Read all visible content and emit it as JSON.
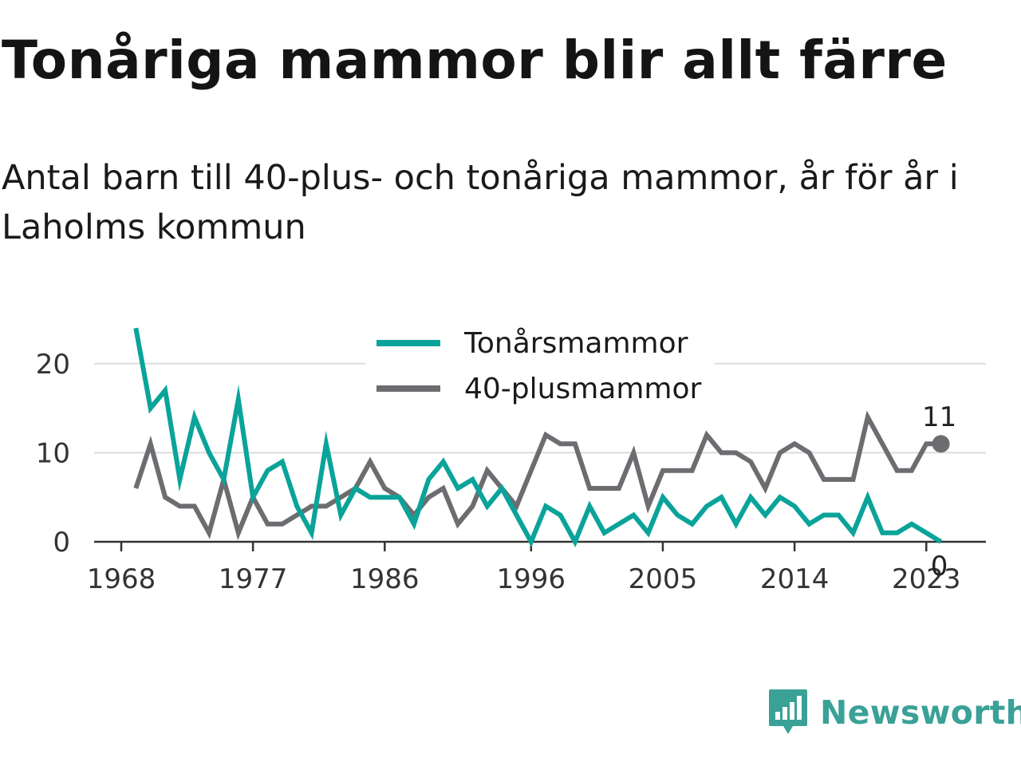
{
  "title": "Tonåriga mammor blir allt färre",
  "subtitle": "Antal barn till 40-plus- och tonåriga mammor, år för år i Laholms kommun",
  "brand": {
    "name": "Newsworthy",
    "color": "#3aa197"
  },
  "chart_data": {
    "type": "line",
    "x": [
      1969,
      1970,
      1971,
      1972,
      1973,
      1974,
      1975,
      1976,
      1977,
      1978,
      1979,
      1980,
      1981,
      1982,
      1983,
      1984,
      1985,
      1986,
      1987,
      1988,
      1989,
      1990,
      1991,
      1992,
      1993,
      1994,
      1995,
      1996,
      1997,
      1998,
      1999,
      2000,
      2001,
      2002,
      2003,
      2004,
      2005,
      2006,
      2007,
      2008,
      2009,
      2010,
      2011,
      2012,
      2013,
      2014,
      2015,
      2016,
      2017,
      2018,
      2019,
      2020,
      2021,
      2022,
      2023,
      2024
    ],
    "series": [
      {
        "name": "Tonårsmammor",
        "color": "#0aa39a",
        "values": [
          24,
          15,
          17,
          7,
          14,
          10,
          7,
          16,
          5,
          8,
          9,
          4,
          1,
          11,
          3,
          6,
          5,
          5,
          5,
          2,
          7,
          9,
          6,
          7,
          4,
          6,
          3,
          0,
          4,
          3,
          0,
          4,
          1,
          2,
          3,
          1,
          5,
          3,
          2,
          4,
          5,
          2,
          5,
          3,
          5,
          4,
          2,
          3,
          3,
          1,
          5,
          1,
          1,
          2,
          1,
          0
        ]
      },
      {
        "name": "40-plusmammor",
        "color": "#6d6c70",
        "values": [
          6,
          11,
          5,
          4,
          4,
          1,
          7,
          1,
          5,
          2,
          2,
          3,
          4,
          4,
          5,
          6,
          9,
          6,
          5,
          3,
          5,
          6,
          2,
          4,
          8,
          6,
          4,
          8,
          12,
          11,
          11,
          6,
          6,
          6,
          10,
          4,
          8,
          8,
          8,
          12,
          10,
          10,
          9,
          6,
          10,
          11,
          10,
          7,
          7,
          7,
          14,
          11,
          8,
          8,
          11,
          11
        ]
      }
    ],
    "xticks": [
      1968,
      1977,
      1986,
      1996,
      2005,
      2014,
      2023
    ],
    "yticks": [
      0,
      10,
      20
    ],
    "xlim": [
      1968,
      2027
    ],
    "ylim": [
      0,
      25
    ],
    "end_labels": {
      "40-plusmammor": "11",
      "Tonårsmammor": "0"
    },
    "legend": "top-center",
    "grid": "horizontal"
  }
}
